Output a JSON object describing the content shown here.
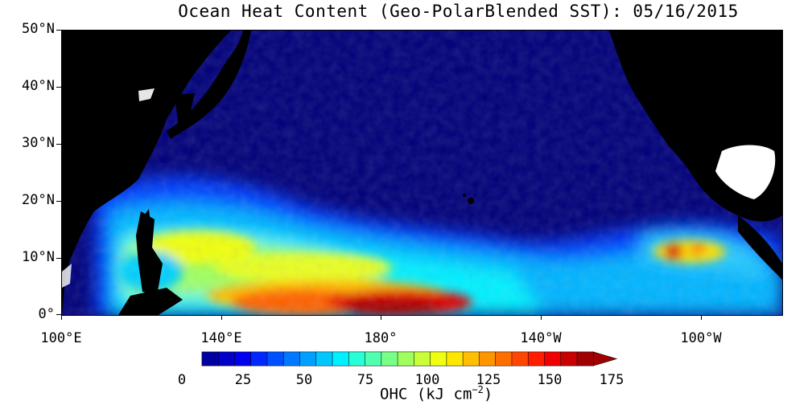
{
  "title": "Ocean Heat Content (Geo-PolarBlended SST): 05/16/2015",
  "map": {
    "lat_labels": [
      "50°N",
      "40°N",
      "30°N",
      "20°N",
      "10°N",
      "0°"
    ],
    "lon_labels": [
      "100°E",
      "140°E",
      "180°",
      "140°W",
      "100°W"
    ],
    "land_color": "#000000",
    "region": "Western/Central Pacific, 0°–50°N, 100°E–80°W"
  },
  "colorbar": {
    "labels": [
      "0",
      "25",
      "50",
      "75",
      "100",
      "125",
      "150",
      "175"
    ],
    "title_main": "OHC (kJ cm",
    "title_exp": "−2",
    "title_close": ")",
    "colors": [
      "#0000a0",
      "#0000c8",
      "#0000f0",
      "#0028ff",
      "#0050ff",
      "#0078ff",
      "#00a0ff",
      "#00c8ff",
      "#00f0ff",
      "#28ffd7",
      "#50ffaf",
      "#78ff87",
      "#a0ff5f",
      "#c8ff37",
      "#f0ff0f",
      "#ffe600",
      "#ffbe00",
      "#ff9600",
      "#ff6e00",
      "#ff4600",
      "#ff1e00",
      "#f00000",
      "#c80000",
      "#a00000"
    ]
  }
}
